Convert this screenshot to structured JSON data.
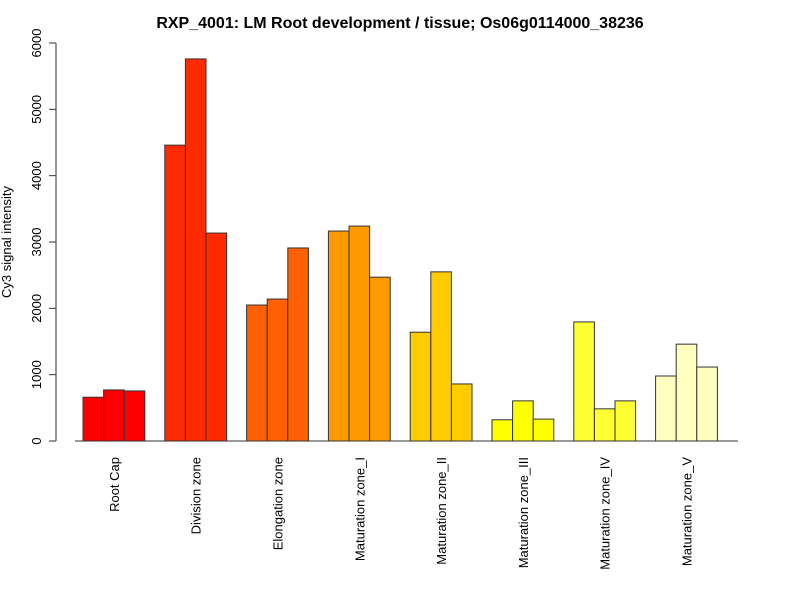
{
  "chart_data": {
    "type": "bar",
    "title": "RXP_4001: LM Root development / tissue; Os06g0114000_38236",
    "xlabel": "",
    "ylabel": "Cy3 signal intensity",
    "ylim": [
      0,
      6000
    ],
    "yticks": [
      0,
      1000,
      2000,
      3000,
      4000,
      5000,
      6000
    ],
    "ytick_labels": [
      "0",
      "1000",
      "2000",
      "3000",
      "4000",
      "5000",
      "6000"
    ],
    "grid": false,
    "legend": "none",
    "categories": [
      "Root Cap",
      "Division zone",
      "Elongation zone",
      "Maturation zone_I",
      "Maturation zone_II",
      "Maturation zone_III",
      "Maturation zone_IV",
      "Maturation zone_V"
    ],
    "colors": [
      "#FF0000",
      "#FF2A00",
      "#FF6000",
      "#FF9900",
      "#FFCC00",
      "#FFFF00",
      "#FFFF33",
      "#FFFFBF"
    ],
    "replicates_per_category": 3,
    "values": [
      [
        660,
        770,
        755
      ],
      [
        4460,
        5760,
        3135
      ],
      [
        2050,
        2140,
        2910
      ],
      [
        3165,
        3240,
        2470
      ],
      [
        1640,
        2550,
        860
      ],
      [
        320,
        605,
        330
      ],
      [
        1795,
        485,
        605
      ],
      [
        980,
        1460,
        1115
      ]
    ]
  }
}
